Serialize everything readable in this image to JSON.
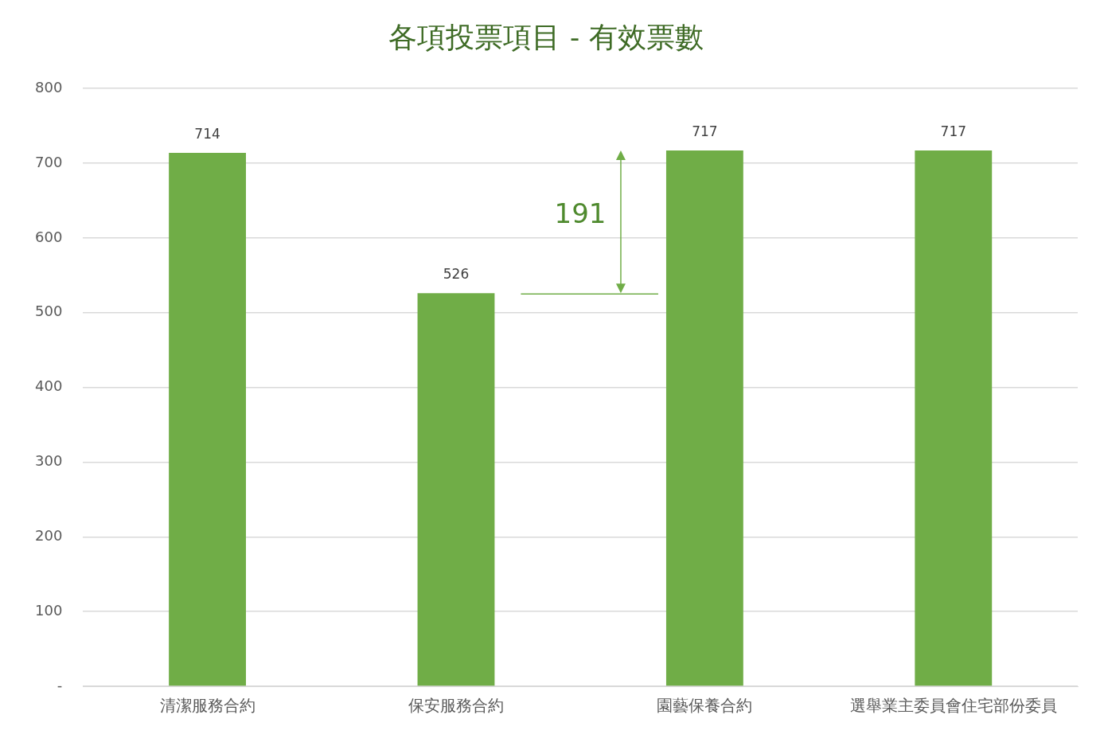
{
  "chart_data": {
    "type": "bar",
    "title": "各項投票項目 - 有效票數",
    "categories": [
      "清潔服務合約",
      "保安服務合約",
      "園藝保養合約",
      "選舉業主委員會住宅部份委員"
    ],
    "values": [
      714,
      526,
      717,
      717
    ],
    "color": "#70ad47",
    "ylim": [
      0,
      800
    ],
    "yticks": [
      {
        "value": 0,
        "label": "-"
      },
      100,
      200,
      300,
      400,
      500,
      600,
      700,
      800
    ],
    "grid": "y",
    "data_labels": true,
    "annotations": [
      "191"
    ]
  }
}
